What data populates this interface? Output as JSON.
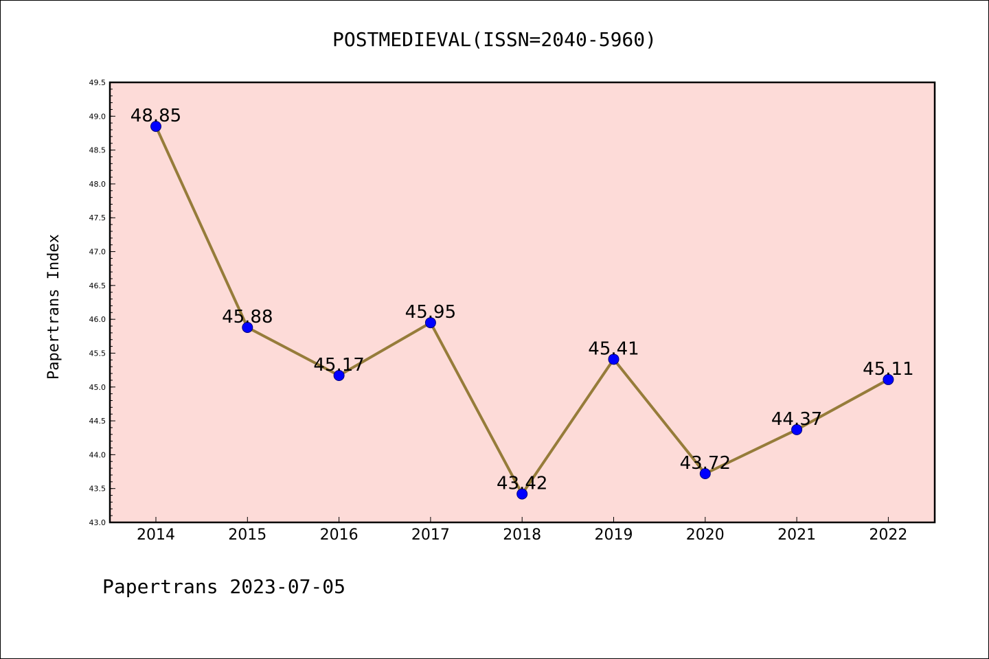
{
  "colors": {
    "plot_background": "#fddbd8",
    "line": "#967c3a",
    "marker_fill": "#0000ff",
    "marker_edge": "#00007a",
    "frame": "#000000"
  },
  "footer": {
    "text": "Papertrans 2023-07-05"
  },
  "chart_data": {
    "type": "line",
    "title": "POSTMEDIEVAL(ISSN=2040-5960)",
    "xlabel": "",
    "ylabel": "Papertrans Index",
    "categories": [
      "2014",
      "2015",
      "2016",
      "2017",
      "2018",
      "2019",
      "2020",
      "2021",
      "2022"
    ],
    "series": [
      {
        "values": [
          48.85,
          45.88,
          45.17,
          45.95,
          43.42,
          45.41,
          43.72,
          44.37,
          45.11
        ]
      }
    ],
    "data_labels": [
      "48.85",
      "45.88",
      "45.17",
      "45.95",
      "43.42",
      "45.41",
      "43.72",
      "44.37",
      "45.11"
    ],
    "ylim": [
      43.0,
      49.5
    ],
    "yticks": [
      "43.0",
      "43.5",
      "44.0",
      "44.5",
      "45.0",
      "45.5",
      "46.0",
      "46.5",
      "47.0",
      "47.5",
      "48.0",
      "48.5",
      "49.0",
      "49.5"
    ],
    "ytick_values": [
      43.0,
      43.5,
      44.0,
      44.5,
      45.0,
      45.5,
      46.0,
      46.5,
      47.0,
      47.5,
      48.0,
      48.5,
      49.0,
      49.5
    ],
    "grid": false,
    "legend": "none"
  }
}
